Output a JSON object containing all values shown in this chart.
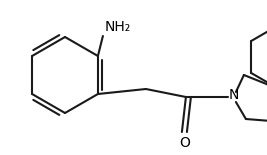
{
  "background_color": "#ffffff",
  "line_color": "#1a1a1a",
  "line_width": 1.5,
  "text_color": "#000000",
  "nh2_label": "NH₂",
  "o_label": "O",
  "n_label": "N",
  "font_size": 10,
  "figsize": [
    2.67,
    1.55
  ],
  "dpi": 100,
  "xlim": [
    0,
    267
  ],
  "ylim": [
    0,
    155
  ]
}
